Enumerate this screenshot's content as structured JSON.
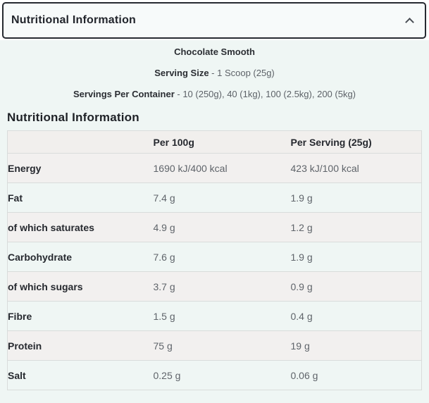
{
  "accordion": {
    "title": "Nutritional Information",
    "chevron_icon": "chevron-up"
  },
  "product": {
    "flavour": "Chocolate Smooth",
    "serving_size_label": "Serving Size",
    "serving_size_value": " - 1 Scoop (25g)",
    "servings_per_container_label": "Servings Per Container",
    "servings_per_container_value": " - 10 (250g), 40 (1kg), 100 (2.5kg), 200 (5kg)"
  },
  "section": {
    "heading": "Nutritional Information"
  },
  "table": {
    "columns": [
      "",
      "Per 100g",
      "Per Serving (25g)"
    ],
    "rows": [
      {
        "label": "Energy",
        "per_100g": "1690 kJ/400 kcal",
        "per_serving": "423 kJ/100 kcal"
      },
      {
        "label": "Fat",
        "per_100g": "7.4 g",
        "per_serving": "1.9 g"
      },
      {
        "label": "of which saturates",
        "per_100g": "4.9 g",
        "per_serving": "1.2 g"
      },
      {
        "label": "Carbohydrate",
        "per_100g": "7.6 g",
        "per_serving": "1.9 g"
      },
      {
        "label": "of which sugars",
        "per_100g": "3.7 g",
        "per_serving": "0.9 g"
      },
      {
        "label": "Fibre",
        "per_100g": "1.5 g",
        "per_serving": "0.4 g"
      },
      {
        "label": "Protein",
        "per_100g": "75 g",
        "per_serving": "19 g"
      },
      {
        "label": "Salt",
        "per_100g": "0.25 g",
        "per_serving": "0.06 g"
      }
    ]
  },
  "colors": {
    "panel_bg": "#eff6f4",
    "stripe_bg": "#f2f0ef",
    "header_row_bg": "#f1efed",
    "accordion_border": "#272a31",
    "table_border": "#d9dcdb",
    "text_dark": "#24272e",
    "text_muted": "#5f646a"
  }
}
